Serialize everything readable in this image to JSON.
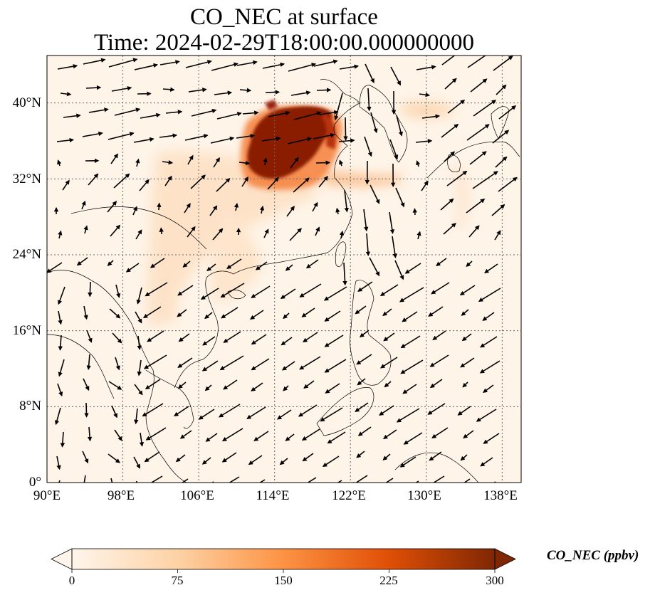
{
  "title": {
    "line1": "CO_NEC at surface",
    "line2": "Time: 2024-02-29T18:00:00.000000000"
  },
  "map": {
    "projection": "PlateCarree",
    "lon_range": [
      90,
      140
    ],
    "lat_range": [
      0,
      40
    ],
    "lat_ticks": [
      {
        "value": 0,
        "label": "0°"
      },
      {
        "value": 8,
        "label": "8°N"
      },
      {
        "value": 16,
        "label": "16°N"
      },
      {
        "value": 24,
        "label": "24°N"
      },
      {
        "value": 32,
        "label": "32°N"
      },
      {
        "value": 40,
        "label": "40°N"
      }
    ],
    "lon_ticks": [
      {
        "value": 90,
        "label": "90°E"
      },
      {
        "value": 98,
        "label": "98°E"
      },
      {
        "value": 106,
        "label": "106°E"
      },
      {
        "value": 114,
        "label": "114°E"
      },
      {
        "value": 122,
        "label": "122°E"
      },
      {
        "value": 130,
        "label": "130°E"
      },
      {
        "value": 138,
        "label": "138°E"
      }
    ],
    "gridlines": true,
    "field": "CO_NEC",
    "vector_field": "surface wind"
  },
  "colorbar": {
    "label": "CO_NEC (ppbv)",
    "min": 0,
    "max": 300,
    "ticks": [
      {
        "value": 0,
        "label": "0"
      },
      {
        "value": 75,
        "label": "75"
      },
      {
        "value": 150,
        "label": "150"
      },
      {
        "value": 225,
        "label": "225"
      },
      {
        "value": 300,
        "label": "300"
      }
    ],
    "extend": "both",
    "colormap": [
      "#fff5eb",
      "#fdd2a5",
      "#fd9243",
      "#df4f05",
      "#7f2704"
    ]
  }
}
